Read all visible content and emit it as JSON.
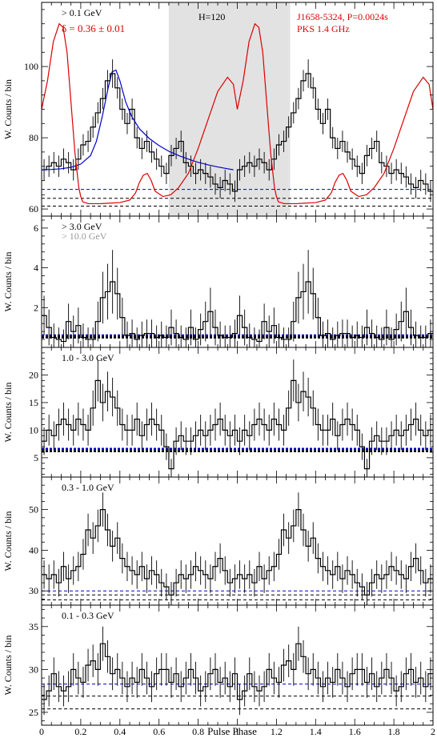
{
  "figure": {
    "xlabel": "Pulse Phase",
    "ylabel": "W. Counts / bin",
    "x_ticks": [
      "0",
      "0.2",
      "0.4",
      "0.6",
      "0.8",
      "1",
      "1.2",
      "1.4",
      "1.6",
      "1.8",
      "2"
    ]
  },
  "chart_data": [
    {
      "type": "line",
      "label": "> 0.1 GeV",
      "xlim": [
        0,
        2
      ],
      "ylim": [
        58,
        118
      ],
      "y_ticks": [
        60,
        80,
        100
      ],
      "annotations": {
        "delta_text": "δ = 0.36 ± 0.01",
        "h_text": "H=120",
        "source_text": "J1658-5324, P=0.0024s",
        "radio_text": "PKS 1.4 GHz"
      },
      "shaded_region": [
        0.65,
        1.27
      ],
      "baselines": [
        {
          "y": 65.5,
          "color": "#0000cc"
        },
        {
          "y": 63.0,
          "color": "#000000"
        },
        {
          "y": 60.8,
          "color": "#000000"
        }
      ],
      "histogram": [
        71,
        72,
        73,
        72,
        74,
        73,
        71,
        74,
        78,
        79,
        83,
        87,
        91,
        96,
        98,
        94,
        88,
        84,
        88,
        80,
        77,
        79,
        76,
        74,
        72,
        70,
        75,
        77,
        79,
        73,
        72,
        70,
        71,
        70,
        69,
        67,
        66,
        68,
        67,
        65,
        71,
        72,
        73,
        72,
        74,
        73,
        71,
        74,
        78,
        79,
        83,
        87,
        91,
        96,
        98,
        94,
        88,
        84,
        88,
        80,
        77,
        79,
        76,
        74,
        72,
        70,
        75,
        77,
        79,
        73,
        72,
        70,
        71,
        70,
        69,
        67,
        66,
        68,
        67,
        65
      ],
      "errors": [
        3,
        3,
        3,
        3,
        3,
        3,
        3,
        3,
        3,
        3,
        3,
        3,
        3,
        3,
        4,
        3,
        3,
        3,
        3,
        3,
        3,
        3,
        3,
        3,
        3,
        3,
        3,
        3,
        3,
        3,
        3,
        3,
        3,
        3,
        3,
        3,
        3,
        3,
        3,
        3,
        3,
        3,
        3,
        3,
        3,
        3,
        3,
        3,
        3,
        3,
        3,
        3,
        3,
        3,
        4,
        3,
        3,
        3,
        3,
        3,
        3,
        3,
        3,
        3,
        3,
        3,
        3,
        3,
        3,
        3,
        3,
        3,
        3,
        3,
        3,
        3,
        3,
        3,
        3,
        3
      ],
      "fit_curve": {
        "color": "#0000cc",
        "x": [
          0.0,
          0.05,
          0.1,
          0.15,
          0.2,
          0.25,
          0.28,
          0.31,
          0.34,
          0.36,
          0.38,
          0.4,
          0.43,
          0.46,
          0.5,
          0.55,
          0.6,
          0.65,
          0.7,
          0.75,
          0.8,
          0.85,
          0.9,
          0.95,
          0.98
        ],
        "y": [
          71.0,
          71.1,
          71.3,
          71.7,
          72.6,
          75.0,
          79.0,
          86.0,
          94.0,
          98.5,
          99.0,
          96.0,
          90.0,
          86.0,
          82.5,
          79.8,
          77.8,
          76.2,
          75.0,
          74.0,
          73.1,
          72.4,
          71.8,
          71.3,
          71.0
        ]
      },
      "radio_curve": {
        "color": "#dd0000",
        "x": [
          0.0,
          0.03,
          0.06,
          0.09,
          0.11,
          0.13,
          0.15,
          0.17,
          0.19,
          0.2,
          0.21,
          0.24,
          0.3,
          0.4,
          0.45,
          0.48,
          0.5,
          0.52,
          0.54,
          0.56,
          0.58,
          0.62,
          0.66,
          0.7,
          0.75,
          0.8,
          0.85,
          0.9,
          0.95,
          0.98,
          1.0,
          1.03,
          1.06,
          1.09,
          1.11,
          1.13,
          1.15,
          1.17,
          1.19,
          1.2,
          1.21,
          1.24,
          1.3,
          1.4,
          1.45,
          1.48,
          1.5,
          1.52,
          1.54,
          1.56,
          1.58,
          1.62,
          1.66,
          1.7,
          1.75,
          1.8,
          1.85,
          1.9,
          1.95,
          1.98,
          2.0
        ],
        "y": [
          88,
          96,
          107,
          112,
          111,
          104,
          90,
          76,
          66,
          63.5,
          62,
          61.5,
          61.5,
          61.8,
          62.5,
          64.5,
          67.5,
          69.5,
          70.0,
          68.0,
          65.0,
          63.5,
          64.0,
          66.0,
          70.0,
          77.0,
          85.0,
          93.0,
          97.0,
          95.0,
          88.0,
          96.0,
          107.0,
          112.0,
          111.0,
          104.0,
          90.0,
          76.0,
          66.0,
          63.5,
          62.0,
          61.5,
          61.5,
          61.8,
          62.5,
          64.5,
          67.5,
          69.5,
          70.0,
          68.0,
          65.0,
          63.5,
          64.0,
          66.0,
          70.0,
          77.0,
          85.0,
          93.0,
          97.0,
          95.0,
          88.0
        ]
      }
    },
    {
      "type": "line",
      "label": "> 3.0 GeV",
      "label2": "> 10.0 GeV",
      "xlim": [
        0,
        2
      ],
      "ylim": [
        0,
        6.6
      ],
      "y_ticks": [
        2,
        4,
        6
      ],
      "baselines": [
        {
          "y": 0.6,
          "color": "#0000cc",
          "thick": true
        },
        {
          "y": 0.5,
          "color": "#000000",
          "thick": true
        }
      ],
      "histogram": [
        1.6,
        1.0,
        0.5,
        0.4,
        0.3,
        1.3,
        0.8,
        1.1,
        0.5,
        0.4,
        0.4,
        1.3,
        2.5,
        2.8,
        3.3,
        2.7,
        1.5,
        0.6,
        0.7,
        0.4,
        0.6,
        0.7,
        0.7,
        0.5,
        0.6,
        0.5,
        1.0,
        0.7,
        0.5,
        0.4,
        1.0,
        0.4,
        0.9,
        1.3,
        1.8,
        1.0,
        0.6,
        0.5,
        0.5,
        0.7,
        1.6,
        1.0,
        0.5,
        0.4,
        0.3,
        1.3,
        0.8,
        1.1,
        0.5,
        0.4,
        0.4,
        1.3,
        2.5,
        2.8,
        3.3,
        2.7,
        1.5,
        0.6,
        0.7,
        0.4,
        0.6,
        0.7,
        0.7,
        0.5,
        0.6,
        0.5,
        1.0,
        0.7,
        0.5,
        0.4,
        1.0,
        0.4,
        0.9,
        1.3,
        1.8,
        1.0,
        0.6,
        0.5,
        0.5,
        0.7
      ],
      "errors": [
        1.0,
        0.9,
        0.7,
        0.6,
        0.6,
        0.9,
        0.8,
        0.9,
        0.7,
        0.6,
        0.6,
        1.0,
        1.3,
        1.4,
        1.6,
        1.3,
        1.0,
        0.7,
        0.7,
        0.6,
        0.7,
        0.7,
        0.7,
        0.6,
        0.7,
        0.6,
        0.9,
        0.7,
        0.6,
        0.6,
        0.9,
        0.6,
        0.8,
        1.0,
        1.2,
        0.9,
        0.7,
        0.6,
        0.6,
        0.7,
        1.0,
        0.9,
        0.7,
        0.6,
        0.6,
        0.9,
        0.8,
        0.9,
        0.7,
        0.6,
        0.6,
        1.0,
        1.3,
        1.4,
        1.6,
        1.3,
        1.0,
        0.7,
        0.7,
        0.6,
        0.7,
        0.7,
        0.7,
        0.6,
        0.7,
        0.6,
        0.9,
        0.7,
        0.6,
        0.6,
        0.9,
        0.6,
        0.8,
        1.0,
        1.2,
        0.9,
        0.7,
        0.6,
        0.6,
        0.7
      ]
    },
    {
      "type": "line",
      "label": "1.0 - 3.0 GeV",
      "xlim": [
        0,
        2
      ],
      "ylim": [
        1.5,
        25
      ],
      "y_ticks": [
        5,
        10,
        15,
        20
      ],
      "baselines": [
        {
          "y": 6.6,
          "color": "#0000cc",
          "thick": true
        },
        {
          "y": 6.2,
          "color": "#000000",
          "thick": true
        }
      ],
      "histogram": [
        8,
        10,
        9,
        11,
        12,
        11,
        10,
        12,
        11,
        10,
        14,
        19,
        15,
        17,
        16,
        14,
        11,
        10,
        10,
        12,
        9,
        11,
        12,
        11,
        10,
        7,
        3,
        8,
        9,
        8,
        8,
        9,
        10,
        9,
        10,
        11,
        12,
        10,
        9,
        10,
        8,
        10,
        9,
        11,
        12,
        11,
        10,
        12,
        11,
        10,
        14,
        19,
        15,
        17,
        16,
        14,
        11,
        10,
        10,
        12,
        9,
        11,
        12,
        11,
        10,
        7,
        3,
        8,
        9,
        8,
        8,
        9,
        10,
        9,
        10,
        11,
        12,
        10,
        9,
        10
      ],
      "errors": [
        2.5,
        2.8,
        2.6,
        2.9,
        3.0,
        2.9,
        2.8,
        3.0,
        2.9,
        2.8,
        3.2,
        3.8,
        3.4,
        3.6,
        3.5,
        3.2,
        2.9,
        2.8,
        2.8,
        3.0,
        2.6,
        2.9,
        3.0,
        2.9,
        2.8,
        2.4,
        1.8,
        2.5,
        2.6,
        2.5,
        2.5,
        2.6,
        2.8,
        2.6,
        2.8,
        2.9,
        3.0,
        2.8,
        2.6,
        2.8,
        2.5,
        2.8,
        2.6,
        2.9,
        3.0,
        2.9,
        2.8,
        3.0,
        2.9,
        2.8,
        3.2,
        3.8,
        3.4,
        3.6,
        3.5,
        3.2,
        2.9,
        2.8,
        2.8,
        3.0,
        2.6,
        2.9,
        3.0,
        2.9,
        2.8,
        2.4,
        1.8,
        2.5,
        2.6,
        2.5,
        2.5,
        2.6,
        2.8,
        2.6,
        2.8,
        2.9,
        3.0,
        2.8,
        2.6,
        2.8
      ]
    },
    {
      "type": "line",
      "label": "0.3 - 1.0 GeV",
      "xlim": [
        0,
        2
      ],
      "ylim": [
        26.5,
        58
      ],
      "y_ticks": [
        30,
        40,
        50
      ],
      "baselines": [
        {
          "y": 30.0,
          "color": "#0000cc"
        },
        {
          "y": 29.0,
          "color": "#000000"
        },
        {
          "y": 27.8,
          "color": "#000000"
        }
      ],
      "histogram": [
        34,
        33,
        34,
        32,
        36,
        33,
        35,
        36,
        39,
        45,
        43,
        46,
        50,
        45,
        41,
        43,
        38,
        36,
        35,
        34,
        36,
        33,
        35,
        34,
        32,
        31,
        29,
        32,
        34,
        33,
        34,
        36,
        35,
        34,
        33,
        36,
        38,
        35,
        32,
        33,
        34,
        33,
        34,
        32,
        36,
        33,
        35,
        36,
        39,
        45,
        43,
        46,
        50,
        45,
        41,
        43,
        38,
        36,
        35,
        34,
        36,
        33,
        35,
        34,
        32,
        31,
        29,
        32,
        34,
        33,
        34,
        36,
        35,
        34,
        33,
        36,
        38,
        35,
        32,
        33
      ],
      "errors": [
        3.5,
        3.5,
        3.5,
        3.4,
        3.6,
        3.5,
        3.5,
        3.6,
        3.8,
        4.0,
        3.9,
        4.0,
        4.2,
        4.0,
        3.8,
        3.9,
        3.7,
        3.6,
        3.5,
        3.5,
        3.6,
        3.5,
        3.5,
        3.5,
        3.4,
        3.3,
        3.2,
        3.4,
        3.5,
        3.5,
        3.5,
        3.6,
        3.5,
        3.5,
        3.5,
        3.6,
        3.7,
        3.5,
        3.4,
        3.5,
        3.5,
        3.5,
        3.5,
        3.4,
        3.6,
        3.5,
        3.5,
        3.6,
        3.8,
        4.0,
        3.9,
        4.0,
        4.2,
        4.0,
        3.8,
        3.9,
        3.7,
        3.6,
        3.5,
        3.5,
        3.6,
        3.5,
        3.5,
        3.5,
        3.4,
        3.3,
        3.2,
        3.4,
        3.5,
        3.5,
        3.5,
        3.6,
        3.5,
        3.5,
        3.5,
        3.6,
        3.7,
        3.5,
        3.4,
        3.5
      ]
    },
    {
      "type": "line",
      "label": "0.1 - 0.3 GeV",
      "xlim": [
        0,
        2
      ],
      "ylim": [
        23.5,
        37.5
      ],
      "y_ticks": [
        25,
        30,
        35
      ],
      "baselines": [
        {
          "y": 28.3,
          "color": "#0000cc"
        },
        {
          "y": 26.9,
          "color": "#000000"
        },
        {
          "y": 25.4,
          "color": "#000000"
        }
      ],
      "histogram": [
        26.5,
        27.5,
        29.5,
        28.0,
        27.5,
        28.0,
        30.0,
        29.0,
        28.5,
        30.5,
        31.0,
        30.0,
        33.0,
        31.5,
        29.5,
        30.0,
        29.0,
        28.0,
        29.0,
        28.5,
        30.0,
        29.0,
        28.0,
        29.5,
        30.0,
        30.0,
        28.5,
        29.5,
        28.0,
        29.0,
        30.0,
        29.0,
        27.5,
        28.0,
        29.5,
        30.0,
        28.5,
        29.0,
        28.0,
        29.5,
        26.5,
        27.5,
        29.5,
        28.0,
        27.5,
        28.0,
        30.0,
        29.0,
        28.5,
        30.5,
        31.0,
        30.0,
        33.0,
        31.5,
        29.5,
        30.0,
        29.0,
        28.0,
        29.0,
        28.5,
        30.0,
        29.0,
        28.0,
        29.5,
        30.0,
        30.0,
        28.5,
        29.5,
        28.0,
        29.0,
        30.0,
        29.0,
        27.5,
        28.0,
        29.5,
        30.0,
        28.5,
        29.0,
        28.0,
        29.5
      ],
      "errors": [
        1.8,
        1.8,
        1.9,
        1.8,
        1.8,
        1.8,
        1.9,
        1.9,
        1.8,
        1.9,
        1.9,
        1.9,
        2.0,
        1.9,
        1.9,
        1.9,
        1.9,
        1.8,
        1.9,
        1.8,
        1.9,
        1.9,
        1.8,
        1.9,
        1.9,
        1.9,
        1.8,
        1.9,
        1.8,
        1.9,
        1.9,
        1.9,
        1.8,
        1.8,
        1.9,
        1.9,
        1.8,
        1.9,
        1.8,
        1.9,
        1.8,
        1.8,
        1.9,
        1.8,
        1.8,
        1.8,
        1.9,
        1.9,
        1.8,
        1.9,
        1.9,
        1.9,
        2.0,
        1.9,
        1.9,
        1.9,
        1.9,
        1.8,
        1.9,
        1.8,
        1.9,
        1.9,
        1.8,
        1.9,
        1.9,
        1.9,
        1.8,
        1.9,
        1.8,
        1.9,
        1.9,
        1.9,
        1.8,
        1.8,
        1.9,
        1.9,
        1.8,
        1.9,
        1.8,
        1.9
      ]
    }
  ]
}
